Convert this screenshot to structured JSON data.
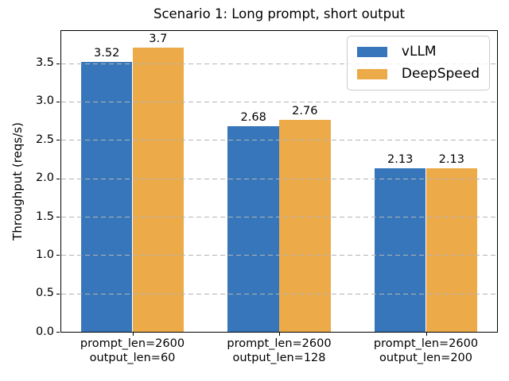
{
  "chart_data": {
    "type": "bar",
    "title": "Scenario 1: Long prompt, short output",
    "xlabel": "",
    "ylabel": "Throughput (reqs/s)",
    "categories": [
      [
        "prompt_len=2600",
        "output_len=60"
      ],
      [
        "prompt_len=2600",
        "output_len=128"
      ],
      [
        "prompt_len=2600",
        "output_len=200"
      ]
    ],
    "series": [
      {
        "name": "vLLM",
        "color": "#3776ba",
        "values": [
          3.52,
          2.68,
          2.13
        ],
        "labels": [
          "3.52",
          "2.68",
          "2.13"
        ]
      },
      {
        "name": "DeepSpeed",
        "color": "#ecaa48",
        "values": [
          3.7,
          2.76,
          2.13
        ],
        "labels": [
          "3.7",
          "2.76",
          "2.13"
        ]
      }
    ],
    "ylim": [
      0,
      3.92
    ],
    "ytick_values": [
      0,
      0.5,
      1,
      1.5,
      2,
      2.5,
      3,
      3.5
    ],
    "ytick_labels": [
      "0.0",
      "0.5",
      "1.0",
      "1.5",
      "2.0",
      "2.5",
      "3.0",
      "3.5"
    ],
    "grid": "horizontal-dashed",
    "grid_on": true,
    "legend_position": "upper right",
    "colors": {
      "axis": "#000000",
      "grid": "#b4b4b4",
      "background": "#ffffff",
      "text": "#000000"
    }
  }
}
